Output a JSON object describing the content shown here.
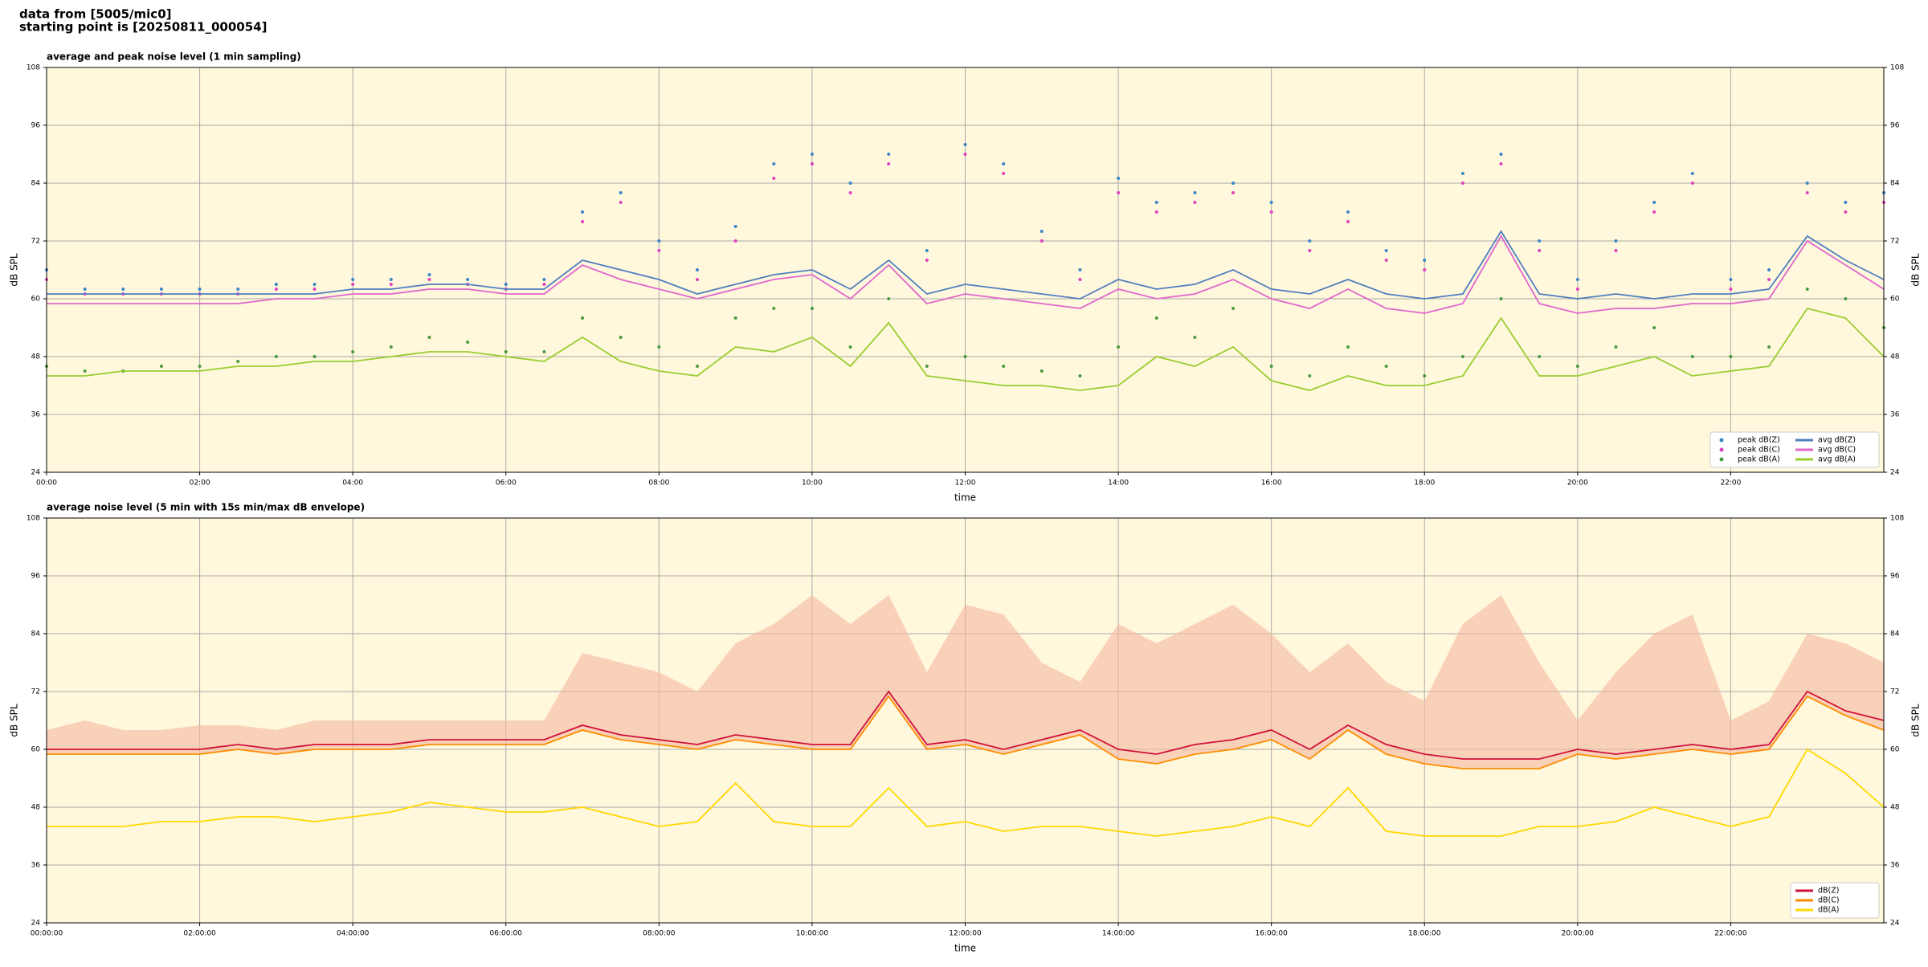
{
  "header": [
    "data from [5005/mic0]",
    "starting point is [20250811_000054]"
  ],
  "chart_data": [
    {
      "type": "line",
      "title": "average and peak noise level (1 min sampling)",
      "xlabel": "time",
      "ylabel": "dB SPL",
      "x": [
        0,
        0.5,
        1,
        1.5,
        2,
        2.5,
        3,
        3.5,
        4,
        4.5,
        5,
        5.5,
        6,
        6.5,
        7,
        7.5,
        8,
        8.5,
        9,
        9.5,
        10,
        10.5,
        11,
        11.5,
        12,
        12.5,
        13,
        13.5,
        14,
        14.5,
        15,
        15.5,
        16,
        16.5,
        17,
        17.5,
        18,
        18.5,
        19,
        19.5,
        20,
        20.5,
        21,
        21.5,
        22,
        22.5,
        23,
        23.5,
        24
      ],
      "xlim": [
        0,
        24
      ],
      "xticks": [
        {
          "value": 0,
          "label": "00:00"
        },
        {
          "value": 2,
          "label": "02:00"
        },
        {
          "value": 4,
          "label": "04:00"
        },
        {
          "value": 6,
          "label": "06:00"
        },
        {
          "value": 8,
          "label": "08:00"
        },
        {
          "value": 10,
          "label": "10:00"
        },
        {
          "value": 12,
          "label": "12:00"
        },
        {
          "value": 14,
          "label": "14:00"
        },
        {
          "value": 16,
          "label": "16:00"
        },
        {
          "value": 18,
          "label": "18:00"
        },
        {
          "value": 20,
          "label": "20:00"
        },
        {
          "value": 22,
          "label": "22:00"
        }
      ],
      "ylim": [
        24,
        108
      ],
      "yticks": [
        24,
        36,
        48,
        60,
        72,
        84,
        96,
        108
      ],
      "grid": true,
      "legend": "lower right",
      "legend_columns": 2,
      "series": [
        {
          "name": "peak dB(Z)",
          "style": "points",
          "color": "#3a86c8",
          "values": [
            66,
            62,
            62,
            62,
            62,
            62,
            63,
            63,
            64,
            64,
            65,
            64,
            63,
            64,
            78,
            82,
            72,
            66,
            75,
            88,
            90,
            84,
            90,
            70,
            92,
            88,
            74,
            66,
            85,
            80,
            82,
            84,
            80,
            72,
            78,
            70,
            68,
            86,
            90,
            72,
            64,
            72,
            80,
            86,
            64,
            66,
            84,
            80,
            82
          ]
        },
        {
          "name": "peak dB(C)",
          "style": "points",
          "color": "#e040c0",
          "values": [
            64,
            61,
            61,
            61,
            61,
            61,
            62,
            62,
            63,
            63,
            64,
            63,
            62,
            63,
            76,
            80,
            70,
            64,
            72,
            85,
            88,
            82,
            88,
            68,
            90,
            86,
            72,
            64,
            82,
            78,
            80,
            82,
            78,
            70,
            76,
            68,
            66,
            84,
            88,
            70,
            62,
            70,
            78,
            84,
            62,
            64,
            82,
            78,
            80
          ]
        },
        {
          "name": "peak dB(A)",
          "style": "points",
          "color": "#4a9a40",
          "values": [
            46,
            45,
            45,
            46,
            46,
            47,
            48,
            48,
            49,
            50,
            52,
            51,
            49,
            49,
            56,
            52,
            50,
            46,
            56,
            58,
            58,
            50,
            60,
            46,
            48,
            46,
            45,
            44,
            50,
            56,
            52,
            58,
            46,
            44,
            50,
            46,
            44,
            48,
            60,
            48,
            46,
            50,
            54,
            48,
            48,
            50,
            62,
            60,
            54
          ]
        },
        {
          "name": "avg dB(Z)",
          "style": "line",
          "color": "#4f7fbf",
          "values": [
            61,
            61,
            61,
            61,
            61,
            61,
            61,
            61,
            62,
            62,
            63,
            63,
            62,
            62,
            68,
            66,
            64,
            61,
            63,
            65,
            66,
            62,
            68,
            61,
            63,
            62,
            61,
            60,
            64,
            62,
            63,
            66,
            62,
            61,
            64,
            61,
            60,
            61,
            74,
            61,
            60,
            61,
            60,
            61,
            61,
            62,
            73,
            68,
            64
          ]
        },
        {
          "name": "avg dB(C)",
          "style": "line",
          "color": "#e066cc",
          "values": [
            59,
            59,
            59,
            59,
            59,
            59,
            60,
            60,
            61,
            61,
            62,
            62,
            61,
            61,
            67,
            64,
            62,
            60,
            62,
            64,
            65,
            60,
            67,
            59,
            61,
            60,
            59,
            58,
            62,
            60,
            61,
            64,
            60,
            58,
            62,
            58,
            57,
            59,
            73,
            59,
            57,
            58,
            58,
            59,
            59,
            60,
            72,
            67,
            62
          ]
        },
        {
          "name": "avg dB(A)",
          "style": "line",
          "color": "#9acd32",
          "values": [
            44,
            44,
            45,
            45,
            45,
            46,
            46,
            47,
            47,
            48,
            49,
            49,
            48,
            47,
            52,
            47,
            45,
            44,
            50,
            49,
            52,
            46,
            55,
            44,
            43,
            42,
            42,
            41,
            42,
            48,
            46,
            50,
            43,
            41,
            44,
            42,
            42,
            44,
            56,
            44,
            44,
            46,
            48,
            44,
            45,
            46,
            58,
            56,
            48
          ]
        }
      ]
    },
    {
      "type": "line",
      "title": "average noise level (5 min with 15s min/max dB envelope)",
      "xlabel": "time",
      "ylabel": "dB SPL",
      "x": [
        0,
        0.5,
        1,
        1.5,
        2,
        2.5,
        3,
        3.5,
        4,
        4.5,
        5,
        5.5,
        6,
        6.5,
        7,
        7.5,
        8,
        8.5,
        9,
        9.5,
        10,
        10.5,
        11,
        11.5,
        12,
        12.5,
        13,
        13.5,
        14,
        14.5,
        15,
        15.5,
        16,
        16.5,
        17,
        17.5,
        18,
        18.5,
        19,
        19.5,
        20,
        20.5,
        21,
        21.5,
        22,
        22.5,
        23,
        23.5,
        24
      ],
      "xlim": [
        0,
        24
      ],
      "xticks": [
        {
          "value": 0,
          "label": "00:00:00"
        },
        {
          "value": 2,
          "label": "02:00:00"
        },
        {
          "value": 4,
          "label": "04:00:00"
        },
        {
          "value": 6,
          "label": "06:00:00"
        },
        {
          "value": 8,
          "label": "08:00:00"
        },
        {
          "value": 10,
          "label": "10:00:00"
        },
        {
          "value": 12,
          "label": "12:00:00"
        },
        {
          "value": 14,
          "label": "14:00:00"
        },
        {
          "value": 16,
          "label": "16:00:00"
        },
        {
          "value": 18,
          "label": "18:00:00"
        },
        {
          "value": 20,
          "label": "20:00:00"
        },
        {
          "value": 22,
          "label": "22:00:00"
        }
      ],
      "ylim": [
        24,
        108
      ],
      "yticks": [
        24,
        36,
        48,
        60,
        72,
        84,
        96,
        108
      ],
      "grid": true,
      "legend": "lower right",
      "legend_columns": 1,
      "envelope": {
        "color": "#f5b8a0",
        "max": [
          64,
          66,
          64,
          64,
          65,
          65,
          64,
          66,
          66,
          66,
          66,
          66,
          66,
          66,
          80,
          78,
          76,
          72,
          82,
          86,
          92,
          86,
          92,
          76,
          90,
          88,
          78,
          74,
          86,
          82,
          86,
          90,
          84,
          76,
          82,
          74,
          70,
          86,
          92,
          78,
          66,
          76,
          84,
          88,
          66,
          70,
          84,
          82,
          78
        ]
      },
      "series": [
        {
          "name": "dB(Z)",
          "style": "line",
          "color": "#d0103a",
          "values": [
            60,
            60,
            60,
            60,
            60,
            61,
            60,
            61,
            61,
            61,
            62,
            62,
            62,
            62,
            65,
            63,
            62,
            61,
            63,
            62,
            61,
            61,
            72,
            61,
            62,
            60,
            62,
            64,
            60,
            59,
            61,
            62,
            64,
            60,
            65,
            61,
            59,
            58,
            58,
            58,
            60,
            59,
            60,
            61,
            60,
            61,
            72,
            68,
            66
          ]
        },
        {
          "name": "dB(C)",
          "style": "line",
          "color": "#ff8c00",
          "values": [
            59,
            59,
            59,
            59,
            59,
            60,
            59,
            60,
            60,
            60,
            61,
            61,
            61,
            61,
            64,
            62,
            61,
            60,
            62,
            61,
            60,
            60,
            71,
            60,
            61,
            59,
            61,
            63,
            58,
            57,
            59,
            60,
            62,
            58,
            64,
            59,
            57,
            56,
            56,
            56,
            59,
            58,
            59,
            60,
            59,
            60,
            71,
            67,
            64
          ]
        },
        {
          "name": "dB(A)",
          "style": "line",
          "color": "#ffd700",
          "values": [
            44,
            44,
            44,
            45,
            45,
            46,
            46,
            45,
            46,
            47,
            49,
            48,
            47,
            47,
            48,
            46,
            44,
            45,
            53,
            45,
            44,
            44,
            52,
            44,
            45,
            43,
            44,
            44,
            43,
            42,
            43,
            44,
            46,
            44,
            52,
            43,
            42,
            42,
            42,
            44,
            44,
            45,
            48,
            46,
            44,
            46,
            60,
            55,
            48
          ]
        }
      ]
    }
  ]
}
